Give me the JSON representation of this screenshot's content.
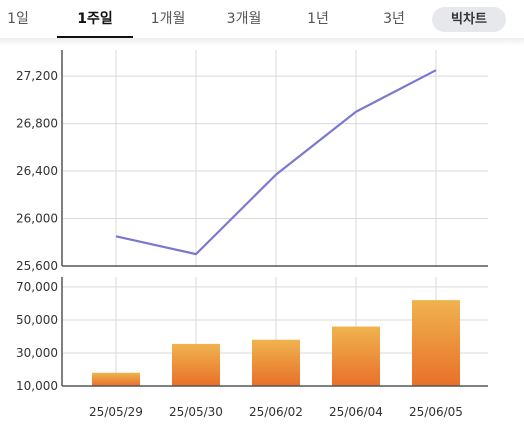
{
  "tabs": [
    {
      "label": "1일",
      "active": false
    },
    {
      "label": "1주일",
      "active": true
    },
    {
      "label": "1개월",
      "active": false
    },
    {
      "label": "3개월",
      "active": false
    },
    {
      "label": "1년",
      "active": false
    },
    {
      "label": "3년",
      "active": false
    }
  ],
  "big_chart_label": "빅차트",
  "colors": {
    "line": "#7b79cf",
    "bar_top": "#f0b34e",
    "bar_bottom": "#e8702a",
    "grid": "#d9d9d9",
    "axis": "#555555"
  },
  "chart_data": [
    {
      "type": "line",
      "title": "",
      "x": [
        "25/05/29",
        "25/05/30",
        "25/06/02",
        "25/06/04",
        "25/06/05"
      ],
      "values": [
        25850,
        25700,
        26370,
        26900,
        27250
      ],
      "yticks": [
        25600,
        26000,
        26400,
        26800,
        27200
      ],
      "ytick_labels": [
        "25,600",
        "26,000",
        "26,400",
        "26,800",
        "27,200"
      ],
      "ylim": [
        25600,
        27420
      ],
      "grid": true
    },
    {
      "type": "bar",
      "title": "",
      "categories": [
        "25/05/29",
        "25/05/30",
        "25/06/02",
        "25/06/04",
        "25/06/05"
      ],
      "values": [
        18000,
        35500,
        38000,
        46000,
        62000
      ],
      "yticks": [
        10000,
        30000,
        50000,
        70000
      ],
      "ytick_labels": [
        "10,000",
        "30,000",
        "50,000",
        "70,000"
      ],
      "ylim": [
        10000,
        76000
      ],
      "grid": true
    }
  ]
}
